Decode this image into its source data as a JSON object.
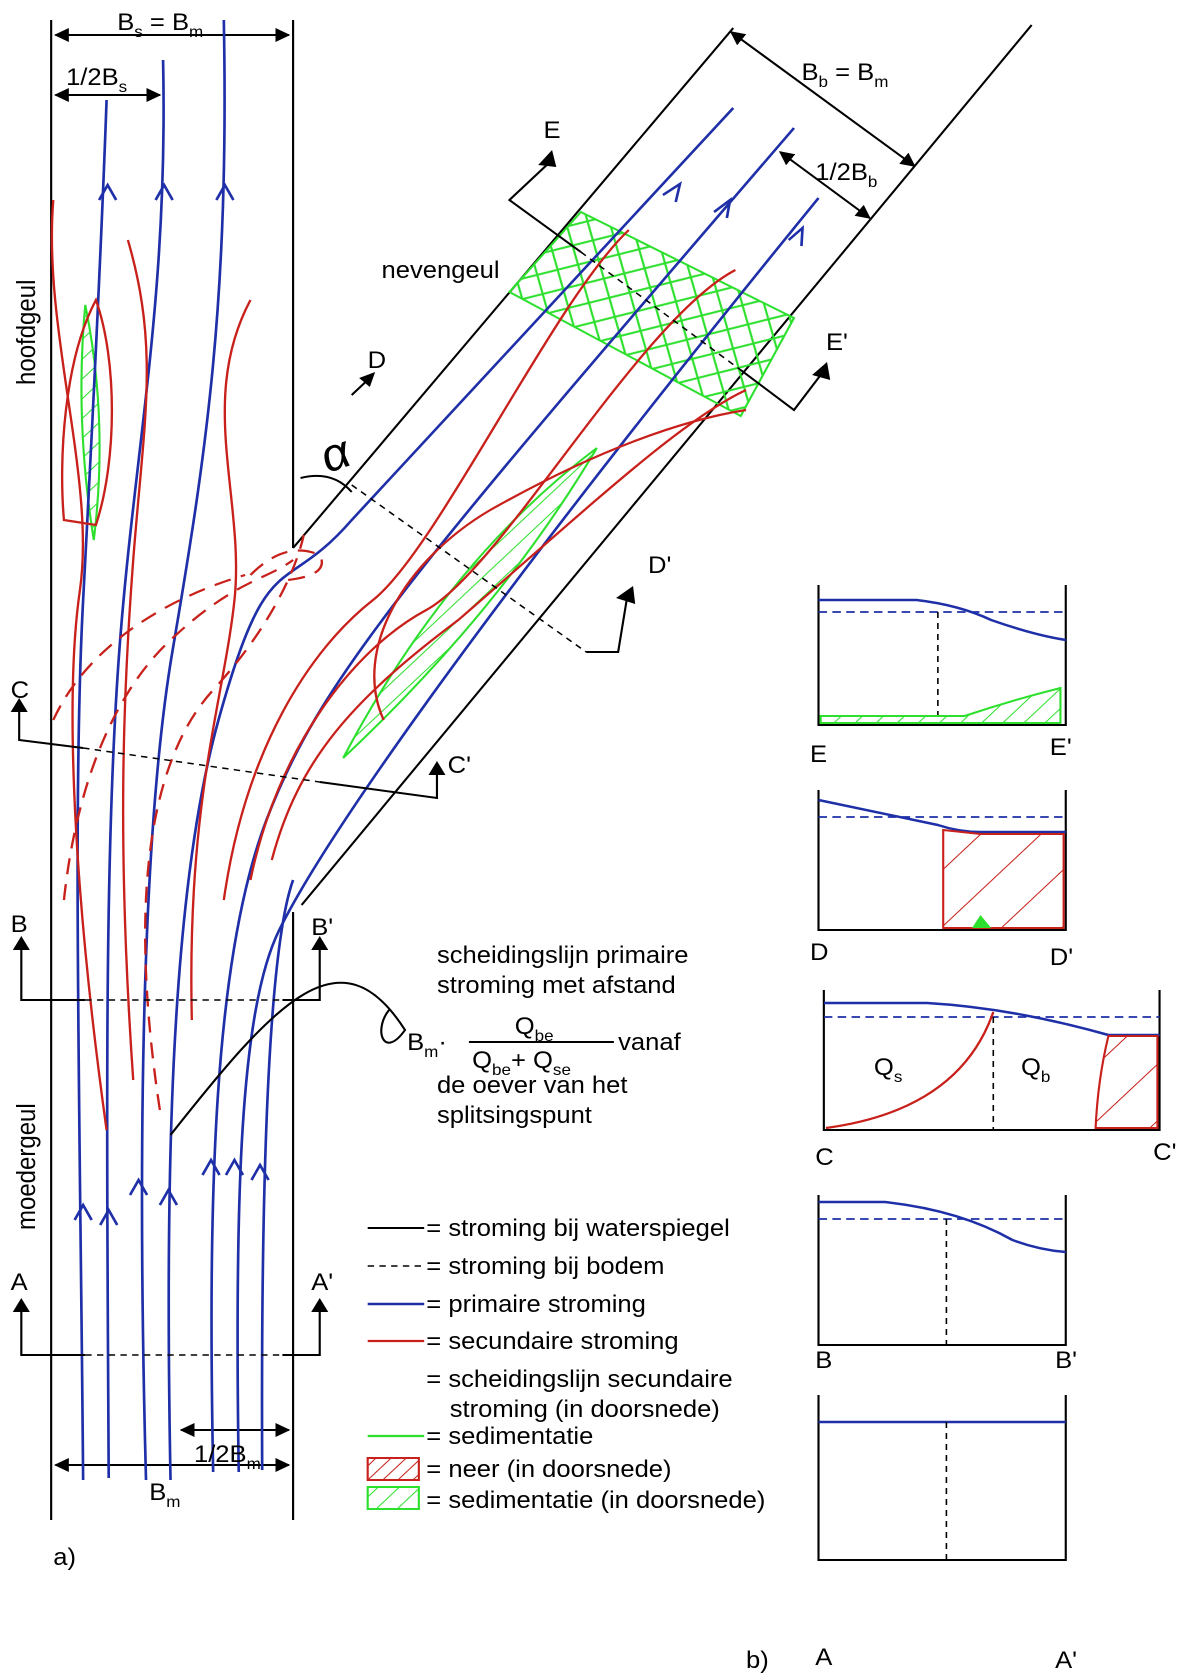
{
  "panel_a": {
    "label": "a)",
    "channel_labels": {
      "main": "hoofdgeul",
      "side": "nevengeul",
      "mother": "moedergeul"
    },
    "width_labels": {
      "bs_bm": [
        {
          "t": "B"
        },
        {
          "t": "s",
          "sub": true
        },
        {
          "t": " = B"
        },
        {
          "t": "m",
          "sub": true
        }
      ],
      "half_bs": [
        {
          "t": "1/2B"
        },
        {
          "t": "s",
          "sub": true
        }
      ],
      "bb_bm": [
        {
          "t": "B"
        },
        {
          "t": "b",
          "sub": true
        },
        {
          "t": " = B"
        },
        {
          "t": "m",
          "sub": true
        }
      ],
      "half_bb": [
        {
          "t": "1/2B"
        },
        {
          "t": "b",
          "sub": true
        }
      ],
      "half_bm": [
        {
          "t": "1/2B"
        },
        {
          "t": "m",
          "sub": true
        }
      ],
      "bm": [
        {
          "t": "B"
        },
        {
          "t": "m",
          "sub": true
        }
      ]
    },
    "angle": "α",
    "sections": {
      "A": "A",
      "A_prime": "A'",
      "B": "B",
      "B_prime": "B'",
      "C": "C",
      "C_prime": "C'",
      "D": "D",
      "D_prime": "D'",
      "E": "E",
      "E_prime": "E'"
    },
    "annotation": {
      "before": [
        "scheidingslijn primaire",
        "stroming met afstand"
      ],
      "prefix": [
        {
          "t": "B"
        },
        {
          "t": "m",
          "sub": true
        },
        {
          "t": "·"
        }
      ],
      "numerator": [
        {
          "t": "Q"
        },
        {
          "t": "be",
          "sub": true
        }
      ],
      "denominator": [
        {
          "t": "Q"
        },
        {
          "t": "be",
          "sub": true
        },
        {
          "t": "+ Q"
        },
        {
          "t": "se",
          "sub": true
        }
      ],
      "suffix": "vanaf",
      "after": [
        "de oever van het",
        "splitsingspunt"
      ]
    }
  },
  "legend": [
    {
      "lines": [
        "= stroming bij waterspiegel"
      ]
    },
    {
      "lines": [
        "= stroming bij bodem"
      ]
    },
    {
      "lines": [
        "= primaire stroming"
      ]
    },
    {
      "lines": [
        "= secundaire stroming"
      ]
    },
    {
      "lines": [
        "= scheidingslijn secundaire",
        "stroming (in doorsnede)"
      ]
    },
    {
      "lines": [
        "= sedimentatie"
      ]
    },
    {
      "lines": [
        "= neer (in doorsnede)"
      ]
    },
    {
      "lines": [
        "= sedimentatie (in doorsnede)"
      ]
    }
  ],
  "panel_b": {
    "label": "b)",
    "sections": [
      {
        "left": "E",
        "right": "E'"
      },
      {
        "left": "D",
        "right": "D'"
      },
      {
        "left": "C",
        "right": "C'"
      },
      {
        "left": "B",
        "right": "B'"
      },
      {
        "left": "A",
        "right": "A'"
      }
    ],
    "q_s": [
      {
        "t": "Q"
      },
      {
        "t": "s",
        "sub": true
      }
    ],
    "q_b": [
      {
        "t": "Q"
      },
      {
        "t": "b",
        "sub": true
      }
    ]
  }
}
